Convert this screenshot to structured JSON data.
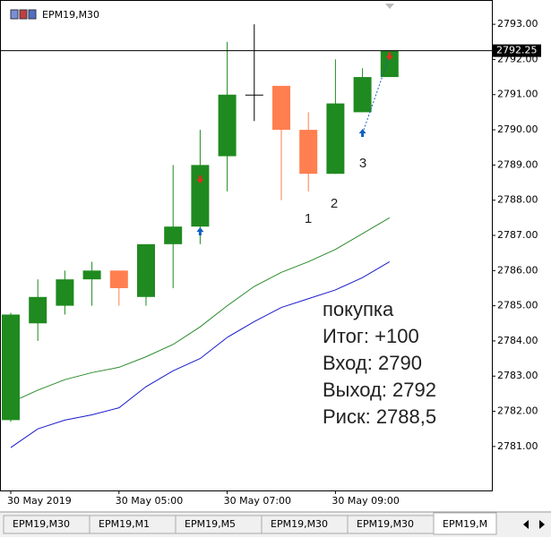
{
  "chart_data": {
    "type": "candlestick",
    "title": "EPM19,M30",
    "categories": [
      "30 May 2019",
      null,
      null,
      null,
      "30 May 05:00",
      null,
      null,
      null,
      "30 May 07:00",
      null,
      null,
      null,
      "30 May 09:00",
      null,
      null
    ],
    "open": [
      2781.75,
      2784.5,
      2785.0,
      2785.75,
      2786.0,
      2785.25,
      2786.75,
      2787.25,
      2789.25,
      2791.0,
      2791.25,
      2790.0,
      2788.75,
      2790.5,
      2791.5
    ],
    "high": [
      2784.8,
      2785.75,
      2786.0,
      2786.25,
      2786.0,
      2786.75,
      2789.0,
      2790.0,
      2792.5,
      2793.0,
      2791.25,
      2790.5,
      2792.0,
      2791.75,
      2792.25
    ],
    "low": [
      2781.7,
      2784.0,
      2784.75,
      2785.0,
      2785.0,
      2785.0,
      2785.5,
      2786.75,
      2788.25,
      2790.25,
      2788.0,
      2788.25,
      2788.75,
      2790.5,
      2791.5
    ],
    "close": [
      2784.75,
      2785.25,
      2785.75,
      2786.0,
      2785.5,
      2786.75,
      2787.25,
      2789.0,
      2791.0,
      2791.0,
      2790.0,
      2788.75,
      2790.75,
      2791.5,
      2792.25
    ],
    "up_color": "#1f8a1f",
    "down_color": "#ff7f50",
    "overlays": [
      {
        "color": "#2a8a2a",
        "values": [
          2782.25,
          2782.6,
          2782.9,
          2783.1,
          2783.25,
          2783.55,
          2783.9,
          2784.4,
          2785.0,
          2785.55,
          2785.95,
          2786.25,
          2786.6,
          2787.05,
          2787.5
        ]
      },
      {
        "color": "#1a1acc",
        "values": [
          2780.97,
          2781.5,
          2781.75,
          2781.9,
          2782.1,
          2782.7,
          2783.15,
          2783.5,
          2784.1,
          2784.55,
          2784.95,
          2785.2,
          2785.45,
          2785.8,
          2786.25
        ]
      }
    ],
    "buy_arrows": [
      {
        "x": 7,
        "value": 2787.1
      },
      {
        "x": 13,
        "value": 2789.9
      }
    ],
    "sell_arrows": [
      {
        "x": 7,
        "value": 2788.6
      },
      {
        "x": 14,
        "value": 2792.1
      }
    ],
    "hline": {
      "value": 2792.25,
      "label": "2792.25"
    },
    "ylim": [
      2779.75,
      2793.69
    ],
    "yticks": [
      {
        "value": 2781,
        "label": "2781.00"
      },
      {
        "value": 2782,
        "label": "2782.00"
      },
      {
        "value": 2783,
        "label": "2783.00"
      },
      {
        "value": 2784,
        "label": "2784.00"
      },
      {
        "value": 2785,
        "label": "2785.00"
      },
      {
        "value": 2786,
        "label": "2786.00"
      },
      {
        "value": 2787,
        "label": "2787.00"
      },
      {
        "value": 2788,
        "label": "2788.00"
      },
      {
        "value": 2789,
        "label": "2789.00"
      },
      {
        "value": 2790,
        "label": "2790.00"
      },
      {
        "value": 2791,
        "label": "2791.00"
      },
      {
        "value": 2792,
        "label": "2792.00"
      },
      {
        "value": 2793,
        "label": "2793.00"
      }
    ],
    "annotations": [
      "1",
      "2",
      "3"
    ],
    "notes": [
      "покупка",
      "Итог: +100",
      "Вход: 2790",
      "Выход: 2792",
      "Риск: 2788,5"
    ]
  },
  "tabs": [
    "EPM19,M30",
    "EPM19,M1",
    "EPM19,M5",
    "EPM19,M30",
    "EPM19,M30",
    "EPM19,M"
  ]
}
